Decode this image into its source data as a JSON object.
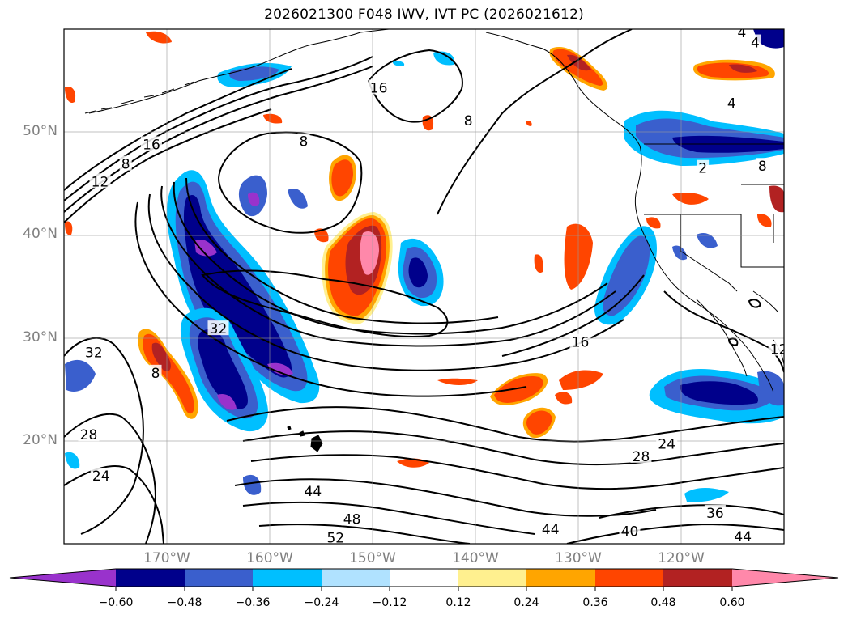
{
  "title": "2026021300 F048 IWV, IVT PC (2026021612)",
  "map": {
    "lat_range": [
      10,
      60
    ],
    "lon_range": [
      -180,
      -110
    ],
    "lat_labels": [
      {
        "lat": 50,
        "label": "50°N"
      },
      {
        "lat": 40,
        "label": "40°N"
      },
      {
        "lat": 30,
        "label": "30°N"
      },
      {
        "lat": 20,
        "label": "20°N"
      }
    ],
    "lon_labels": [
      {
        "lon": -170,
        "label": "170°W"
      },
      {
        "lon": -160,
        "label": "160°W"
      },
      {
        "lon": -150,
        "label": "150°W"
      },
      {
        "lon": -140,
        "label": "140°W"
      },
      {
        "lon": -130,
        "label": "130°W"
      },
      {
        "lon": -120,
        "label": "120°W"
      }
    ],
    "contour_labels": [
      {
        "text": "16",
        "lon": -149.4,
        "lat": 54.3
      },
      {
        "text": "8",
        "lon": -140.7,
        "lat": 51.1
      },
      {
        "text": "8",
        "lon": -156.7,
        "lat": 49.1
      },
      {
        "text": "16",
        "lon": -171.5,
        "lat": 48.8
      },
      {
        "text": "8",
        "lon": -174.0,
        "lat": 46.9
      },
      {
        "text": "12",
        "lon": -176.5,
        "lat": 45.2
      },
      {
        "text": "4",
        "lon": -114.1,
        "lat": 59.7
      },
      {
        "text": "4",
        "lon": -112.8,
        "lat": 58.7
      },
      {
        "text": "4",
        "lon": -115.1,
        "lat": 52.8
      },
      {
        "text": "2",
        "lon": -117.9,
        "lat": 46.5
      },
      {
        "text": "8",
        "lon": -112.1,
        "lat": 46.7
      },
      {
        "text": "32",
        "lon": -165.0,
        "lat": 30.9
      },
      {
        "text": "16",
        "lon": -129.8,
        "lat": 29.6
      },
      {
        "text": "12",
        "lon": -110.5,
        "lat": 28.9
      },
      {
        "text": "32",
        "lon": -177.1,
        "lat": 28.6
      },
      {
        "text": "8",
        "lon": -171.1,
        "lat": 26.6
      },
      {
        "text": "28",
        "lon": -177.6,
        "lat": 20.6
      },
      {
        "text": "24",
        "lon": -176.4,
        "lat": 16.6
      },
      {
        "text": "24",
        "lon": -121.4,
        "lat": 19.7
      },
      {
        "text": "28",
        "lon": -123.9,
        "lat": 18.5
      },
      {
        "text": "44",
        "lon": -155.8,
        "lat": 15.1
      },
      {
        "text": "48",
        "lon": -152.0,
        "lat": 12.4
      },
      {
        "text": "52",
        "lon": -153.6,
        "lat": 10.6
      },
      {
        "text": "44",
        "lon": -132.7,
        "lat": 11.4
      },
      {
        "text": "40",
        "lon": -125.0,
        "lat": 11.2
      },
      {
        "text": "36",
        "lon": -116.7,
        "lat": 13.0
      },
      {
        "text": "44",
        "lon": -114.0,
        "lat": 10.7
      }
    ]
  },
  "colorbar": {
    "labels": [
      "−0.60",
      "−0.48",
      "−0.36",
      "−0.24",
      "−0.12",
      "0.12",
      "0.24",
      "0.36",
      "0.48",
      "0.60"
    ],
    "colors": [
      "#9932cc",
      "#00008b",
      "#3a5fcd",
      "#00bfff",
      "#b0e2ff",
      "#ffffff",
      "#fff08f",
      "#ffa500",
      "#ff4500",
      "#b22222",
      "#ff88aa"
    ]
  },
  "anomaly_colors": {
    "neg_strong": "#00008b",
    "neg_mid": "#3a5fcd",
    "neg_light": "#00bfff",
    "neg_faint": "#b0e2ff",
    "neg_extreme": "#9932cc",
    "pos_faint": "#fff08f",
    "pos_light": "#ffa500",
    "pos_mid": "#ff4500",
    "pos_strong": "#b22222",
    "pos_extreme": "#ff88aa"
  }
}
